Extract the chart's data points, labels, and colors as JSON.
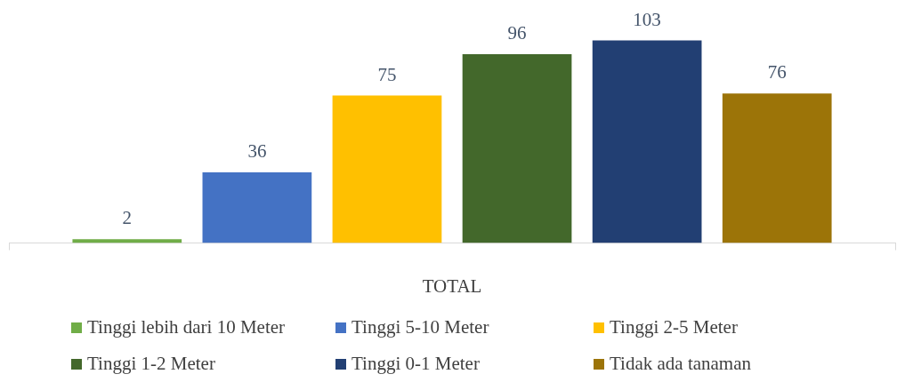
{
  "chart_data": {
    "type": "bar",
    "categories": [
      null
    ],
    "xlabel": "TOTAL",
    "series": [
      {
        "name": "Tinggi lebih dari 10 Meter",
        "color": "#70ad47",
        "values": [
          2
        ]
      },
      {
        "name": "Tinggi 5-10 Meter",
        "color": "#4472c4",
        "values": [
          36
        ]
      },
      {
        "name": "Tinggi 2-5 Meter",
        "color": "#ffc000",
        "values": [
          75
        ]
      },
      {
        "name": "Tinggi 1-2 Meter",
        "color": "#43682b",
        "values": [
          96
        ]
      },
      {
        "name": "Tinggi 0-1 Meter",
        "color": "#223f73",
        "values": [
          103
        ]
      },
      {
        "name": "Tidak ada tanaman",
        "color": "#9c7408",
        "values": [
          76
        ]
      }
    ],
    "data_labels": true,
    "legend": "bottom"
  }
}
